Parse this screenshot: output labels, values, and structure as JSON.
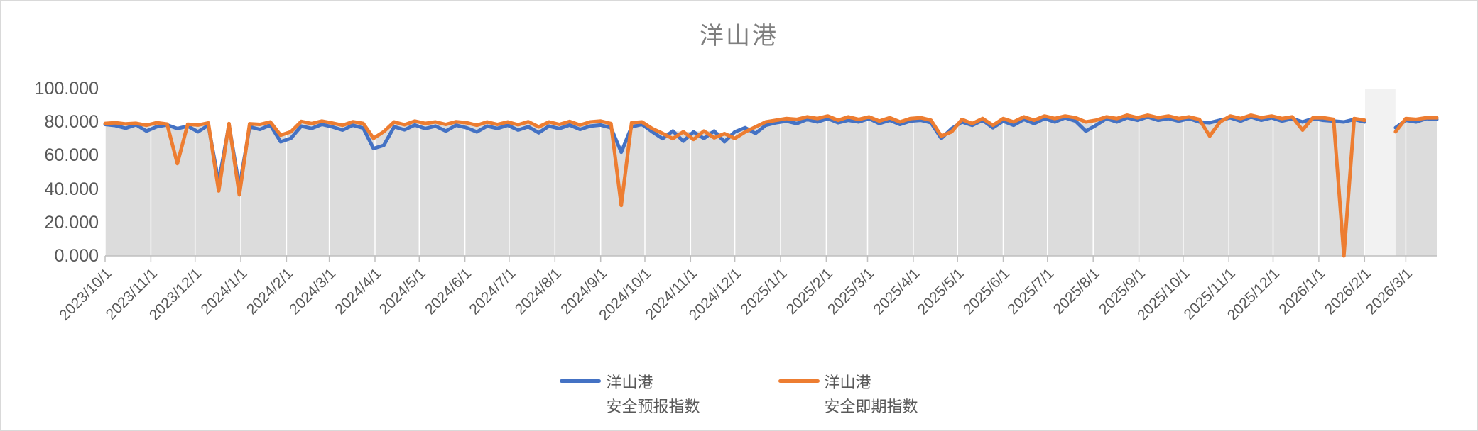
{
  "title": {
    "text": "洋山港",
    "color": "#7F7F7F"
  },
  "legend": {
    "items": [
      {
        "line1": "洋山港",
        "line2": "安全预报指数",
        "color": "#4472C4"
      },
      {
        "line1": "洋山港",
        "line2": "安全即期指数",
        "color": "#ED7D31"
      }
    ]
  },
  "chart_data": {
    "type": "line",
    "title": "洋山港",
    "xlabel": "",
    "ylabel": "",
    "ylim": [
      0,
      100
    ],
    "grid": "vertical-monthly-white",
    "legend_position": "bottom",
    "plot_area_fill": "#DCDCDC",
    "gap_fill": "#F2F2F2",
    "axis_color": "#BFBFBF",
    "gridline_color": "#FFFFFF",
    "tick_label_color": "#595959",
    "y_tick_labels": [
      "100.000",
      "80.000",
      "60.000",
      "40.000",
      "20.000",
      "0.000"
    ],
    "x_tick_labels": [
      "2023/10/1",
      "2023/11/1",
      "2023/12/1",
      "2024/1/1",
      "2024/2/1",
      "2024/3/1",
      "2024/4/1",
      "2024/5/1",
      "2024/6/1",
      "2024/7/1",
      "2024/8/1",
      "2024/9/1",
      "2024/10/1",
      "2024/11/1",
      "2024/12/1",
      "2025/1/1",
      "2025/2/1",
      "2025/3/1",
      "2025/4/1",
      "2025/5/1",
      "2025/6/1",
      "2025/7/1",
      "2025/8/1",
      "2025/9/1",
      "2025/10/1",
      "2025/11/1",
      "2025/12/1",
      "2026/1/1",
      "2026/2/1",
      "2026/3/1"
    ],
    "x": [
      "2023/10/1",
      "2023/10/8",
      "2023/10/15",
      "2023/10/22",
      "2023/10/29",
      "2023/11/5",
      "2023/11/12",
      "2023/11/19",
      "2023/11/26",
      "2023/12/3",
      "2023/12/10",
      "2023/12/17",
      "2023/12/24",
      "2023/12/31",
      "2024/1/7",
      "2024/1/14",
      "2024/1/21",
      "2024/1/28",
      "2024/2/4",
      "2024/2/11",
      "2024/2/18",
      "2024/2/25",
      "2024/3/3",
      "2024/3/10",
      "2024/3/17",
      "2024/3/24",
      "2024/3/31",
      "2024/4/7",
      "2024/4/14",
      "2024/4/21",
      "2024/4/28",
      "2024/5/5",
      "2024/5/12",
      "2024/5/19",
      "2024/5/26",
      "2024/6/2",
      "2024/6/9",
      "2024/6/16",
      "2024/6/23",
      "2024/6/30",
      "2024/7/7",
      "2024/7/14",
      "2024/7/21",
      "2024/7/28",
      "2024/8/4",
      "2024/8/11",
      "2024/8/18",
      "2024/8/25",
      "2024/9/1",
      "2024/9/8",
      "2024/9/15",
      "2024/9/22",
      "2024/9/29",
      "2024/10/6",
      "2024/10/13",
      "2024/10/20",
      "2024/10/27",
      "2024/11/3",
      "2024/11/10",
      "2024/11/17",
      "2024/11/24",
      "2024/12/1",
      "2024/12/8",
      "2024/12/15",
      "2024/12/22",
      "2024/12/29",
      "2025/1/5",
      "2025/1/12",
      "2025/1/19",
      "2025/1/26",
      "2025/2/2",
      "2025/2/9",
      "2025/2/16",
      "2025/2/23",
      "2025/3/2",
      "2025/3/9",
      "2025/3/16",
      "2025/3/23",
      "2025/3/30",
      "2025/4/6",
      "2025/4/13",
      "2025/4/20",
      "2025/4/27",
      "2025/5/4",
      "2025/5/11",
      "2025/5/18",
      "2025/5/25",
      "2025/6/1",
      "2025/6/8",
      "2025/6/15",
      "2025/6/22",
      "2025/6/29",
      "2025/7/6",
      "2025/7/13",
      "2025/7/20",
      "2025/7/27",
      "2025/8/3",
      "2025/8/10",
      "2025/8/17",
      "2025/8/24",
      "2025/8/31",
      "2025/9/7",
      "2025/9/14",
      "2025/9/21",
      "2025/9/28",
      "2025/10/5",
      "2025/10/12",
      "2025/10/19",
      "2025/10/26",
      "2025/11/2",
      "2025/11/9",
      "2025/11/16",
      "2025/11/23",
      "2025/11/30",
      "2025/12/7",
      "2025/12/14",
      "2025/12/21",
      "2025/12/28",
      "2026/1/4",
      "2026/1/11",
      "2026/1/18",
      "2026/1/25",
      "2026/2/1",
      "2026/2/8",
      "2026/2/15",
      "2026/2/22",
      "2026/3/1",
      "2026/3/8",
      "2026/3/15",
      "2026/3/22"
    ],
    "series": [
      {
        "id": "forecast-index",
        "name": "洋山港 安全预报指数",
        "color": "#4472C4",
        "values": [
          78.6,
          77.9,
          76.3,
          78.4,
          74.6,
          77.2,
          78.3,
          76.1,
          77.6,
          74.2,
          78.1,
          44.0,
          78.4,
          41.2,
          77.1,
          75.6,
          78.2,
          68.2,
          70.3,
          77.6,
          76.2,
          78.6,
          77.1,
          75.2,
          78.1,
          76.4,
          64.2,
          66.1,
          77.2,
          75.4,
          78.2,
          76.1,
          77.6,
          74.6,
          78.1,
          76.6,
          74.1,
          77.6,
          76.2,
          78.1,
          75.2,
          77.2,
          73.6,
          77.6,
          76.1,
          78.2,
          75.6,
          77.6,
          78.2,
          76.6,
          62.0,
          77.1,
          78.6,
          74.2,
          70.1,
          74.6,
          68.6,
          74.1,
          70.2,
          74.6,
          68.2,
          74.1,
          76.6,
          73.2,
          78.1,
          79.6,
          80.6,
          79.1,
          81.6,
          80.1,
          82.1,
          79.6,
          81.1,
          80.1,
          82.1,
          79.1,
          81.1,
          78.6,
          80.6,
          81.1,
          79.6,
          70.2,
          76.1,
          80.1,
          78.1,
          81.1,
          76.6,
          80.6,
          78.1,
          81.6,
          79.1,
          82.1,
          80.1,
          82.6,
          80.6,
          74.6,
          78.1,
          82.1,
          80.1,
          82.6,
          81.1,
          83.1,
          81.1,
          82.1,
          80.6,
          82.1,
          80.1,
          79.6,
          81.1,
          82.6,
          80.6,
          83.1,
          81.1,
          82.6,
          80.6,
          82.1,
          80.1,
          82.1,
          81.1,
          80.6,
          80.1,
          81.6,
          80.1,
          null,
          null,
          76.6,
          81.1,
          80.1,
          82.1,
          81.6
        ]
      },
      {
        "id": "spot-index",
        "name": "洋山港 安全即期指数",
        "color": "#ED7D31",
        "values": [
          79.2,
          79.6,
          78.9,
          79.3,
          78.1,
          79.6,
          78.8,
          55.2,
          78.7,
          78.2,
          79.5,
          38.8,
          79.1,
          36.5,
          79.0,
          78.6,
          80.1,
          72.1,
          74.2,
          80.4,
          79.1,
          80.6,
          79.4,
          78.1,
          80.2,
          79.2,
          70.3,
          74.3,
          80.1,
          78.4,
          80.6,
          79.2,
          80.1,
          78.6,
          80.2,
          79.6,
          78.1,
          80.1,
          78.6,
          80.1,
          78.4,
          80.2,
          77.1,
          80.1,
          78.6,
          80.4,
          78.2,
          80.1,
          80.6,
          79.1,
          30.2,
          79.6,
          80.1,
          76.1,
          73.2,
          70.1,
          74.2,
          69.6,
          74.6,
          70.6,
          73.1,
          70.2,
          74.1,
          77.1,
          80.1,
          81.1,
          82.1,
          81.6,
          83.1,
          82.1,
          83.6,
          81.1,
          83.1,
          81.6,
          83.1,
          80.6,
          82.6,
          80.1,
          82.1,
          82.6,
          81.1,
          71.6,
          74.2,
          81.6,
          79.1,
          82.1,
          78.1,
          82.1,
          80.1,
          83.1,
          81.1,
          83.6,
          82.1,
          83.6,
          82.6,
          80.1,
          81.1,
          83.1,
          82.1,
          84.1,
          82.6,
          84.1,
          82.6,
          83.6,
          82.1,
          83.1,
          81.6,
          71.6,
          80.1,
          83.6,
          82.1,
          84.1,
          82.6,
          83.6,
          82.1,
          83.1,
          75.2,
          82.6,
          82.6,
          81.6,
          0.0,
          82.1,
          81.1,
          null,
          null,
          74.2,
          82.1,
          81.6,
          82.6,
          82.6
        ]
      }
    ]
  }
}
